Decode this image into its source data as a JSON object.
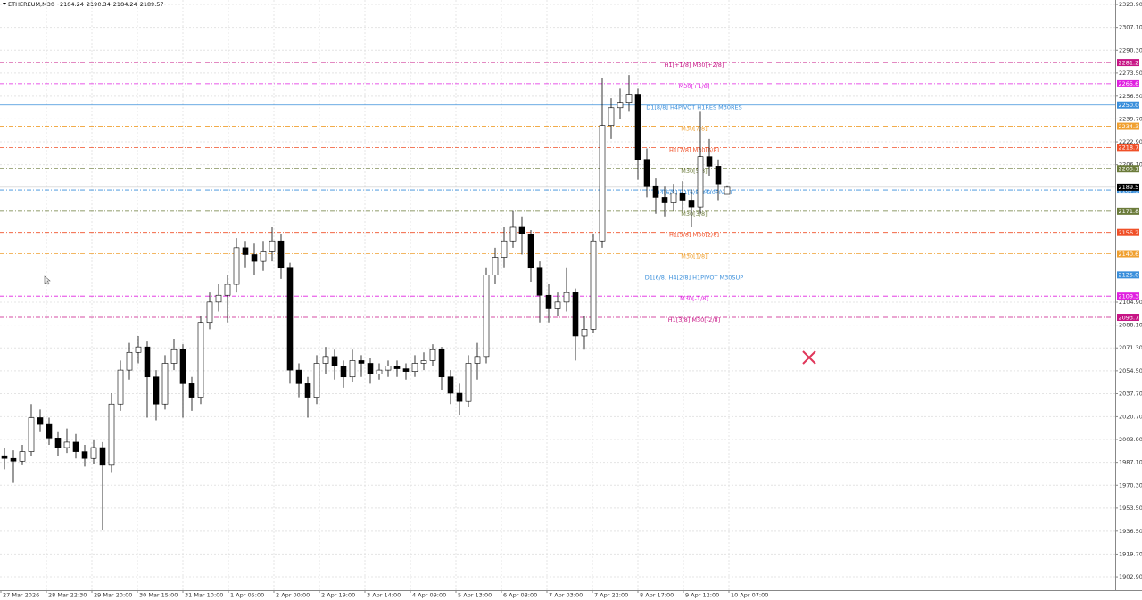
{
  "chart_data": {
    "type": "candlestick",
    "title": "ETHEREUM,M30",
    "ylim": [
      1893.1,
      2327.2
    ],
    "yticks": [
      {
        "value": 2323.9,
        "label": "2323.90"
      },
      {
        "value": 2307.1,
        "label": "2307.10"
      },
      {
        "value": 2290.3,
        "label": "2290.30"
      },
      {
        "value": 2273.5,
        "label": "2273.50"
      },
      {
        "value": 2256.5,
        "label": "2256.50"
      },
      {
        "value": 2239.7,
        "label": "2239.70"
      },
      {
        "value": 2222.9,
        "label": "2222.90"
      },
      {
        "value": 2206.1,
        "label": "2206.10"
      },
      {
        "value": 2104.9,
        "label": "2104.90"
      },
      {
        "value": 2088.1,
        "label": "2088.10"
      },
      {
        "value": 2071.3,
        "label": "2071.30"
      },
      {
        "value": 2054.5,
        "label": "2054.50"
      },
      {
        "value": 2037.7,
        "label": "2037.70"
      },
      {
        "value": 2020.7,
        "label": "2020.70"
      },
      {
        "value": 2003.9,
        "label": "2003.90"
      },
      {
        "value": 1987.1,
        "label": "1987.10"
      },
      {
        "value": 1970.3,
        "label": "1970.30"
      },
      {
        "value": 1953.5,
        "label": "1953.50"
      },
      {
        "value": 1936.5,
        "label": "1936.50"
      },
      {
        "value": 1919.7,
        "label": "1919.70"
      },
      {
        "value": 1902.9,
        "label": "1902.90"
      }
    ],
    "x_labels": [
      "27 Mar 2026",
      "28 Mar 22:30",
      "29 Mar 20:00",
      "30 Mar 15:00",
      "31 Mar 10:00",
      "1 Apr 05:00",
      "2 Apr 00:00",
      "2 Apr 19:00",
      "3 Apr 14:00",
      "4 Apr 09:00",
      "5 Apr 13:00",
      "6 Apr 08:00",
      "7 Apr 03:00",
      "7 Apr 22:00",
      "8 Apr 17:00",
      "9 Apr 12:00",
      "10 Apr 07:00"
    ],
    "grid": true,
    "bull_color": "#ffffff",
    "bear_color": "#000000",
    "ohlc": [
      [
        1992,
        1998,
        1982,
        1990
      ],
      [
        1990,
        1996,
        1972,
        1988
      ],
      [
        1988,
        2000,
        1985,
        1995
      ],
      [
        1995,
        2030,
        1992,
        2020
      ],
      [
        2020,
        2026,
        2010,
        2015
      ],
      [
        2015,
        2020,
        2000,
        2005
      ],
      [
        2005,
        2010,
        1992,
        1998
      ],
      [
        1998,
        2012,
        1994,
        2002
      ],
      [
        2002,
        2008,
        1990,
        1995
      ],
      [
        1995,
        2000,
        1984,
        1990
      ],
      [
        1990,
        2004,
        1986,
        1998
      ],
      [
        1998,
        2002,
        1937,
        1985
      ],
      [
        1985,
        2038,
        1980,
        2030
      ],
      [
        2030,
        2062,
        2025,
        2055
      ],
      [
        2055,
        2075,
        2048,
        2068
      ],
      [
        2068,
        2080,
        2060,
        2072
      ],
      [
        2072,
        2076,
        2020,
        2050
      ],
      [
        2050,
        2055,
        2018,
        2030
      ],
      [
        2030,
        2066,
        2026,
        2060
      ],
      [
        2060,
        2078,
        2055,
        2070
      ],
      [
        2070,
        2074,
        2020,
        2045
      ],
      [
        2045,
        2050,
        2025,
        2035
      ],
      [
        2035,
        2095,
        2030,
        2090
      ],
      [
        2090,
        2112,
        2085,
        2105
      ],
      [
        2105,
        2118,
        2098,
        2110
      ],
      [
        2110,
        2125,
        2090,
        2118
      ],
      [
        2118,
        2152,
        2112,
        2145
      ],
      [
        2145,
        2150,
        2130,
        2140
      ],
      [
        2140,
        2148,
        2125,
        2135
      ],
      [
        2135,
        2150,
        2128,
        2142
      ],
      [
        2142,
        2160,
        2135,
        2150
      ],
      [
        2150,
        2155,
        2122,
        2130
      ],
      [
        2130,
        2134,
        2045,
        2055
      ],
      [
        2055,
        2060,
        2035,
        2045
      ],
      [
        2045,
        2050,
        2020,
        2035
      ],
      [
        2035,
        2066,
        2030,
        2060
      ],
      [
        2060,
        2072,
        2052,
        2065
      ],
      [
        2065,
        2070,
        2048,
        2058
      ],
      [
        2058,
        2062,
        2042,
        2050
      ],
      [
        2050,
        2070,
        2046,
        2062
      ],
      [
        2062,
        2066,
        2050,
        2060
      ],
      [
        2060,
        2064,
        2045,
        2052
      ],
      [
        2052,
        2060,
        2048,
        2055
      ],
      [
        2055,
        2062,
        2050,
        2058
      ],
      [
        2058,
        2062,
        2050,
        2056
      ],
      [
        2056,
        2060,
        2048,
        2054
      ],
      [
        2054,
        2066,
        2050,
        2060
      ],
      [
        2060,
        2068,
        2055,
        2062
      ],
      [
        2062,
        2074,
        2058,
        2070
      ],
      [
        2070,
        2072,
        2040,
        2050
      ],
      [
        2050,
        2055,
        2030,
        2038
      ],
      [
        2038,
        2045,
        2022,
        2032
      ],
      [
        2032,
        2066,
        2028,
        2060
      ],
      [
        2060,
        2075,
        2048,
        2065
      ],
      [
        2065,
        2130,
        2060,
        2125
      ],
      [
        2125,
        2145,
        2118,
        2138
      ],
      [
        2138,
        2160,
        2130,
        2150
      ],
      [
        2150,
        2172,
        2145,
        2160
      ],
      [
        2160,
        2168,
        2140,
        2155
      ],
      [
        2155,
        2158,
        2120,
        2130
      ],
      [
        2130,
        2135,
        2090,
        2110
      ],
      [
        2110,
        2118,
        2090,
        2100
      ],
      [
        2100,
        2112,
        2095,
        2105
      ],
      [
        2105,
        2130,
        2098,
        2112
      ],
      [
        2112,
        2115,
        2062,
        2080
      ],
      [
        2080,
        2095,
        2070,
        2085
      ],
      [
        2085,
        2155,
        2082,
        2150
      ],
      [
        2150,
        2270,
        2145,
        2235
      ],
      [
        2235,
        2255,
        2225,
        2248
      ],
      [
        2248,
        2262,
        2240,
        2252
      ],
      [
        2252,
        2272,
        2245,
        2258
      ],
      [
        2258,
        2262,
        2195,
        2210
      ],
      [
        2210,
        2218,
        2182,
        2190
      ],
      [
        2190,
        2196,
        2170,
        2182
      ],
      [
        2182,
        2190,
        2168,
        2178
      ],
      [
        2178,
        2192,
        2172,
        2185
      ],
      [
        2185,
        2194,
        2172,
        2180
      ],
      [
        2180,
        2188,
        2160,
        2175
      ],
      [
        2175,
        2245,
        2170,
        2212
      ],
      [
        2212,
        2225,
        2198,
        2205
      ],
      [
        2205,
        2210,
        2180,
        2192
      ],
      [
        2184.24,
        2190.34,
        2184.24,
        2189.57
      ]
    ],
    "levels": [
      {
        "name": "H1[+1/8] M30[+2/8]",
        "value": 2281.25,
        "label": "2281.25",
        "color": "#c71585",
        "style": "dashdot"
      },
      {
        "name": "M30[+1/8]",
        "value": 2265.62,
        "label": "2265.62",
        "color": "#e020e0",
        "style": "dashdot"
      },
      {
        "name": "D1[8/8] H4PIVOT H1RES M30RES",
        "value": 2250,
        "label": "2250.00",
        "color": "#3a8fdb",
        "style": "solid"
      },
      {
        "name": "M30[7/8]",
        "value": 2234.38,
        "label": "2234.38",
        "color": "#f0a030",
        "style": "dashdot"
      },
      {
        "name": "H1[7/8] M30[6/8]",
        "value": 2218.75,
        "label": "2218.75",
        "color": "#f05028",
        "style": "dashdot"
      },
      {
        "name": "M30[5/8]",
        "value": 2203.12,
        "label": "2203.12",
        "color": "#6b7b3a",
        "style": "dashdot"
      },
      {
        "name": "H4[6/8] H1[6/8] M30PIVOT",
        "value": 2187.5,
        "label": "2187.50",
        "color": "#3a8fdb",
        "style": "dashdot"
      },
      {
        "name": "M30[3/8]",
        "value": 2171.88,
        "label": "2171.88",
        "color": "#6b7b3a",
        "style": "dashdot"
      },
      {
        "name": "H1[5/8] M30[2/8]",
        "value": 2156.25,
        "label": "2156.25",
        "color": "#f05028",
        "style": "dashdot"
      },
      {
        "name": "M30[1/8]",
        "value": 2140.62,
        "label": "2140.62",
        "color": "#f0a030",
        "style": "dashdot"
      },
      {
        "name": "D1[6/8] H4[2/8] H1PIVOT M30SUP",
        "value": 2125,
        "label": "2125.00",
        "color": "#3a8fdb",
        "style": "solid"
      },
      {
        "name": "M30[-1/8]",
        "value": 2109.38,
        "label": "2109.38",
        "color": "#e020e0",
        "style": "dashdot"
      },
      {
        "name": "H1[3/8] M30[-2/8]",
        "value": 2093.75,
        "label": "2093.75",
        "color": "#c71585",
        "style": "dashdot"
      }
    ]
  }
}
